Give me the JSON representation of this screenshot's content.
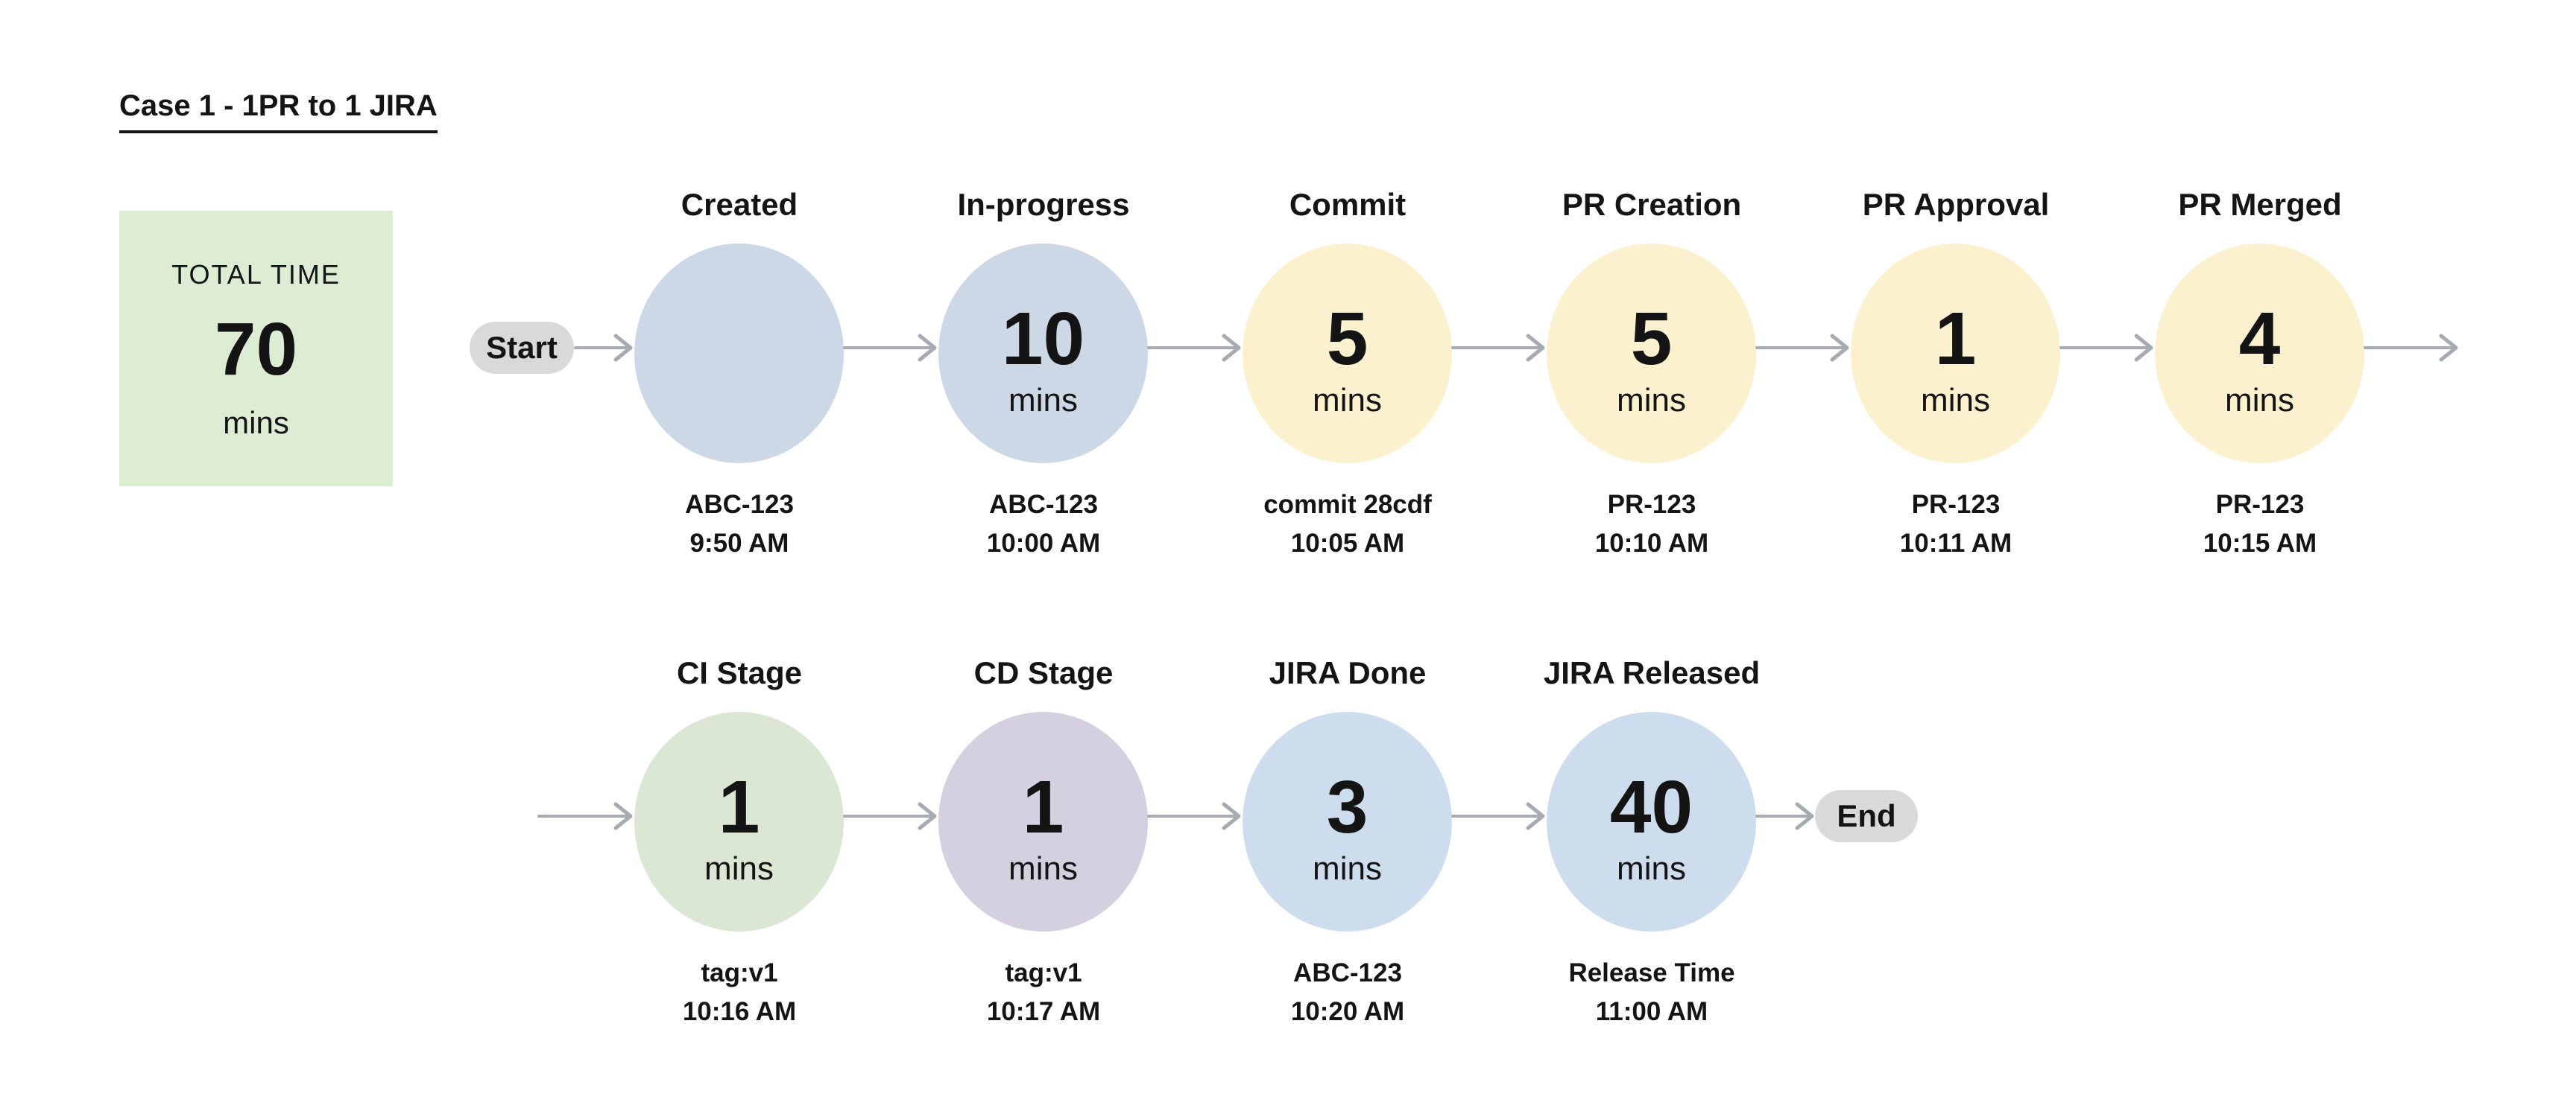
{
  "title": "Case 1 - 1PR to 1 JIRA",
  "summary": {
    "label": "TOTAL TIME",
    "value": "70",
    "unit": "mins"
  },
  "flow": {
    "start_label": "Start",
    "end_label": "End",
    "rows": [
      {
        "nodes": [
          {
            "name": "Created",
            "duration": "",
            "unit": "",
            "ref": "ABC-123",
            "time": "9:50 AM",
            "color": "blue"
          },
          {
            "name": "In-progress",
            "duration": "10",
            "unit": "mins",
            "ref": "ABC-123",
            "time": "10:00 AM",
            "color": "blue"
          },
          {
            "name": "Commit",
            "duration": "5",
            "unit": "mins",
            "ref": "commit 28cdf",
            "time": "10:05 AM",
            "color": "yellow"
          },
          {
            "name": "PR Creation",
            "duration": "5",
            "unit": "mins",
            "ref": "PR-123",
            "time": "10:10 AM",
            "color": "yellow"
          },
          {
            "name": "PR Approval",
            "duration": "1",
            "unit": "mins",
            "ref": "PR-123",
            "time": "10:11 AM",
            "color": "yellow"
          },
          {
            "name": "PR Merged",
            "duration": "4",
            "unit": "mins",
            "ref": "PR-123",
            "time": "10:15 AM",
            "color": "yellow"
          }
        ]
      },
      {
        "nodes": [
          {
            "name": "CI Stage",
            "duration": "1",
            "unit": "mins",
            "ref": "tag:v1",
            "time": "10:16 AM",
            "color": "green"
          },
          {
            "name": "CD Stage",
            "duration": "1",
            "unit": "mins",
            "ref": "tag:v1",
            "time": "10:17 AM",
            "color": "purple"
          },
          {
            "name": "JIRA Done",
            "duration": "3",
            "unit": "mins",
            "ref": "ABC-123",
            "time": "10:20 AM",
            "color": "blue2"
          },
          {
            "name": "JIRA Released",
            "duration": "40",
            "unit": "mins",
            "ref": "Release Time",
            "time": "11:00 AM",
            "color": "blue2"
          }
        ]
      }
    ]
  },
  "colors": {
    "blue": "#ccd8e5",
    "blue2": "#cdddee",
    "yellow": "#fbf1cf",
    "green": "#dbe7d3",
    "purple": "#d4d0e0",
    "box_green": "#dcedd4",
    "pill_gray": "#d9d9d9",
    "arrow": "#a6aab2",
    "text": "#141414"
  }
}
